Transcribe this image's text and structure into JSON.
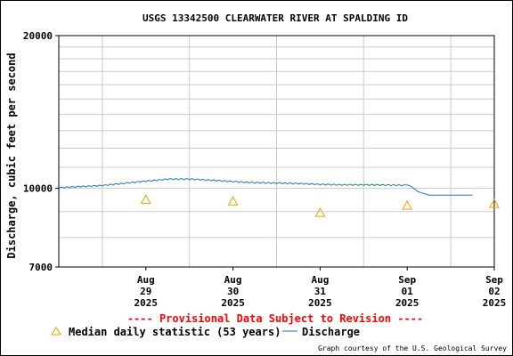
{
  "chart_data": {
    "type": "line",
    "title": "USGS 13342500 CLEARWATER RIVER AT SPALDING ID",
    "ylabel": "Discharge, cubic feet per second",
    "xlabel": "",
    "y_scale": "log",
    "ylim": [
      7000,
      20000
    ],
    "xlim": [
      "2025-08-28 12:00",
      "2025-09-02 12:00"
    ],
    "y_ticks": [
      "7000",
      "10000",
      "20000"
    ],
    "x_ticks": [
      {
        "month": "Aug",
        "day": "29",
        "year": "2025"
      },
      {
        "month": "Aug",
        "day": "30",
        "year": "2025"
      },
      {
        "month": "Aug",
        "day": "31",
        "year": "2025"
      },
      {
        "month": "Sep",
        "day": "01",
        "year": "2025"
      },
      {
        "month": "Sep",
        "day": "02",
        "year": "2025"
      }
    ],
    "series": [
      {
        "name": "Discharge",
        "color": "#1f77b4",
        "x": [
          "2025-08-28 12:00",
          "2025-08-28 18:00",
          "2025-08-29 00:00",
          "2025-08-29 06:00",
          "2025-08-29 12:00",
          "2025-08-29 18:00",
          "2025-08-30 00:00",
          "2025-08-30 06:00",
          "2025-08-30 12:00",
          "2025-08-30 18:00",
          "2025-08-31 00:00",
          "2025-08-31 06:00",
          "2025-08-31 12:00",
          "2025-08-31 18:00",
          "2025-09-01 00:00",
          "2025-09-01 06:00",
          "2025-09-01 12:00",
          "2025-09-01 13:00",
          "2025-09-01 15:00",
          "2025-09-01 18:00",
          "2025-09-02 00:00",
          "2025-09-02 06:00"
        ],
        "y": [
          10050,
          10100,
          10150,
          10250,
          10350,
          10450,
          10450,
          10400,
          10330,
          10280,
          10260,
          10240,
          10200,
          10180,
          10180,
          10170,
          10160,
          10100,
          9850,
          9700,
          9700,
          9700
        ]
      },
      {
        "name": "Median daily statistic (53 years)",
        "color": "#e5a100",
        "marker": "triangle",
        "x": [
          "2025-08-29 12:00",
          "2025-08-30 12:00",
          "2025-08-31 12:00",
          "2025-09-01 12:00",
          "2025-09-02 12:00"
        ],
        "y": [
          9500,
          9430,
          8950,
          9250,
          9320
        ]
      }
    ],
    "legend": {
      "position": "bottom",
      "median_label": "Median daily statistic (53 years)",
      "discharge_label": "Discharge"
    },
    "grid": true,
    "annotations": {
      "provisional": "---- Provisional Data Subject to Revision ----",
      "provisional_color": "#ff0000",
      "courtesy": "Graph courtesy of the U.S. Geological Survey"
    }
  }
}
